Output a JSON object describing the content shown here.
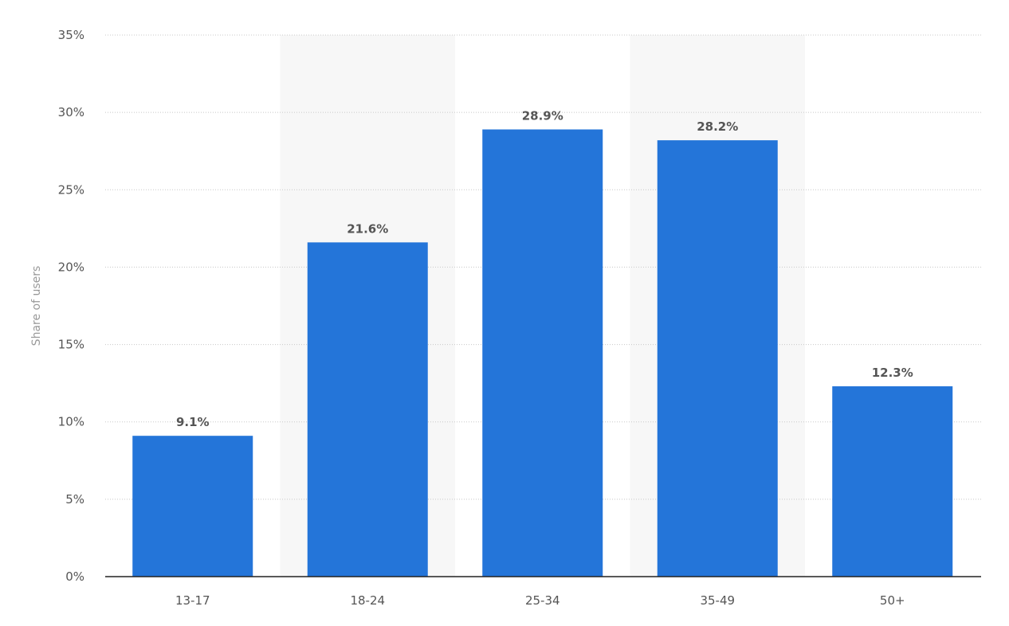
{
  "chart_data": {
    "type": "bar",
    "title": "",
    "xlabel": "",
    "ylabel": "Share of users",
    "categories": [
      "13-17",
      "18-24",
      "25-34",
      "35-49",
      "50+"
    ],
    "values": [
      9.1,
      21.6,
      28.9,
      28.2,
      12.3
    ],
    "data_labels": [
      "9.1%",
      "21.6%",
      "28.9%",
      "28.2%",
      "12.3%"
    ],
    "ylim": [
      0,
      35
    ],
    "yticks": [
      0,
      5,
      10,
      15,
      20,
      25,
      30,
      35
    ],
    "ytick_labels": [
      "0%",
      "5%",
      "10%",
      "15%",
      "20%",
      "25%",
      "30%",
      "35%"
    ],
    "grid": true,
    "legend": "none",
    "colors": {
      "bar": "#2475d9",
      "band": "#f7f7f7"
    }
  }
}
